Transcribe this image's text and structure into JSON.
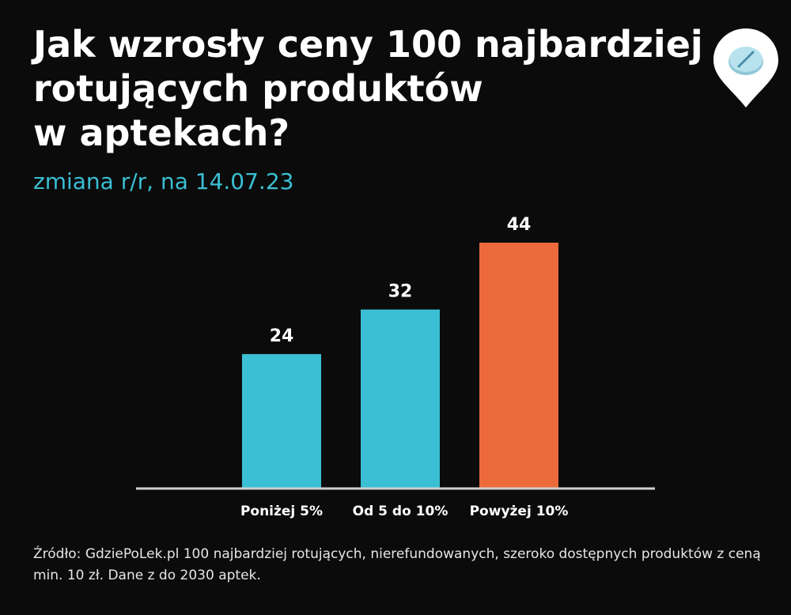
{
  "header": {
    "title_lines": [
      "Jak wzrosły ceny 100 najbardziej",
      "rotujących produktów",
      "w aptekach?"
    ],
    "subtitle": "zmiana r/r, na 14.07.23"
  },
  "logo": {
    "icon": "pill-location-pin-icon",
    "pin_color": "#ffffff",
    "pill_color": "#b8e2ee"
  },
  "chart_data": {
    "type": "bar",
    "categories": [
      "Poniżej 5%",
      "Od 5 do 10%",
      "Powyżej 10%"
    ],
    "values": [
      24,
      32,
      44
    ],
    "colors": [
      "#3bbfd4",
      "#3bbfd4",
      "#ec6a3c"
    ],
    "ylim": [
      0,
      44
    ],
    "grid": false,
    "legend": "none",
    "baseline_color": "#cfcfcf"
  },
  "footer": {
    "source": "Źródło: GdziePoLek.pl 100 najbardziej rotujących, nierefundowanych, szeroko dostępnych produktów z ceną min. 10 zł. Dane z do 2030 aptek."
  }
}
